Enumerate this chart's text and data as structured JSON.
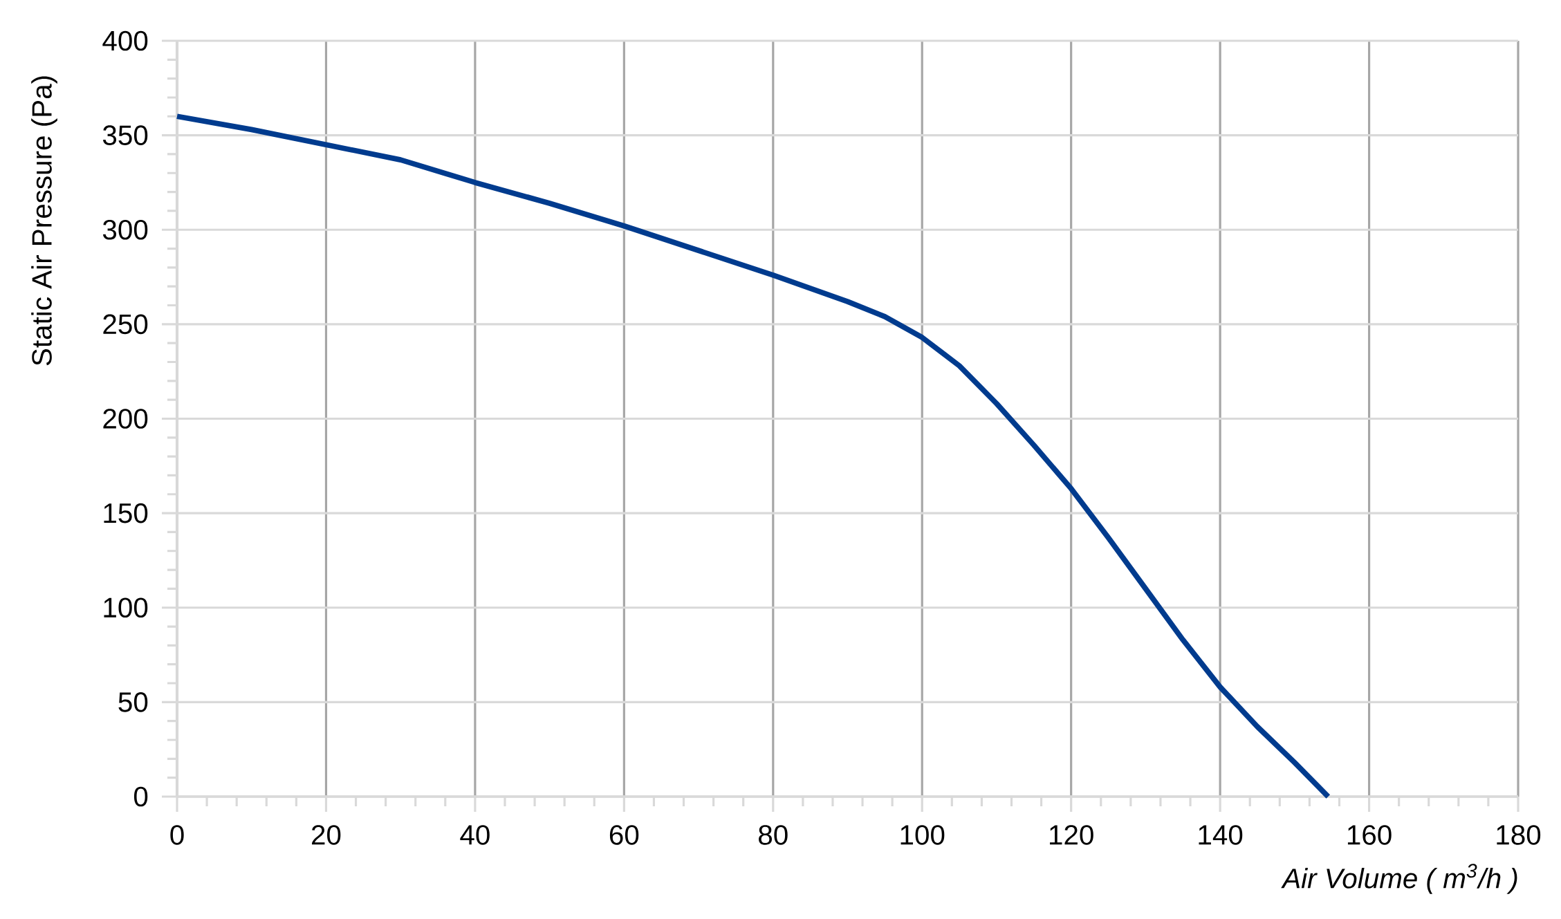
{
  "chart_data": {
    "type": "line",
    "xlabel": "*Air Volume ( m$^{3}$/h )*",
    "ylabel": "Static Air Pressure  (Pa)",
    "x": [
      0,
      10,
      20,
      30,
      40,
      50,
      60,
      70,
      80,
      90,
      95,
      100,
      105,
      110,
      115,
      120,
      125,
      130,
      135,
      140,
      145,
      150,
      154.5
    ],
    "series": [
      {
        "color": "#003b8e",
        "values": [
          360,
          353,
          345,
          337,
          325,
          314,
          302,
          289,
          276,
          262,
          254,
          243,
          228,
          208,
          186,
          163,
          137,
          110,
          83,
          58,
          37,
          18,
          0
        ]
      }
    ],
    "xlim": [
      0,
      180
    ],
    "ylim": [
      0,
      400
    ],
    "xticks": [
      0,
      20,
      40,
      60,
      80,
      100,
      120,
      140,
      160,
      180
    ],
    "yticks": [
      0,
      50,
      100,
      150,
      200,
      250,
      300,
      350,
      400
    ],
    "grid": true,
    "line_style": "solid"
  }
}
